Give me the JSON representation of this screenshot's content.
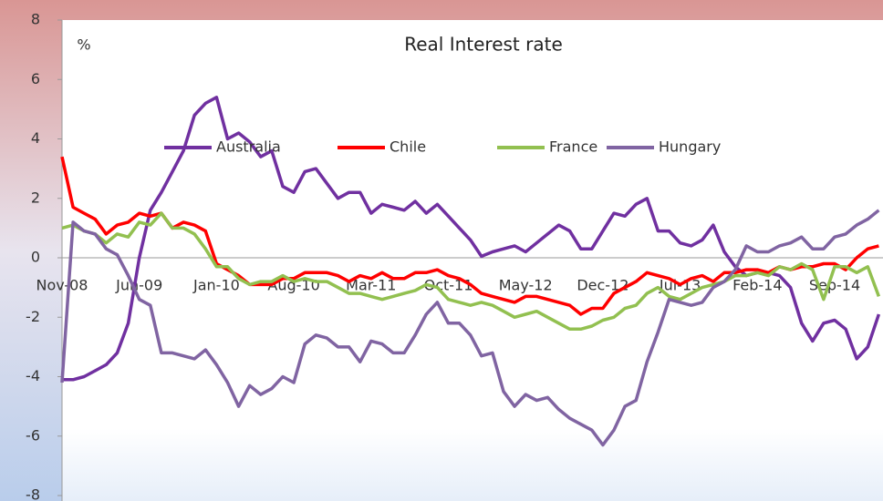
{
  "chart_data": {
    "type": "line",
    "title": "Real Interest rate",
    "y_label": "%",
    "categories": [
      "Nov-08",
      null,
      null,
      null,
      null,
      null,
      null,
      "Jun-09",
      null,
      null,
      null,
      null,
      null,
      null,
      "Jan-10",
      null,
      null,
      null,
      null,
      null,
      null,
      "Aug-10",
      null,
      null,
      null,
      null,
      null,
      null,
      "Mar-11",
      null,
      null,
      null,
      null,
      null,
      null,
      "Oct-11",
      null,
      null,
      null,
      null,
      null,
      null,
      "May-12",
      null,
      null,
      null,
      null,
      null,
      null,
      "Dec-12",
      null,
      null,
      null,
      null,
      null,
      null,
      "Jul-13",
      null,
      null,
      null,
      null,
      null,
      null,
      "Feb-14",
      null,
      null,
      null,
      null,
      null,
      null,
      "Sep-14",
      null,
      null,
      null,
      null
    ],
    "series": [
      {
        "name": "Australia",
        "color": "#7030a0",
        "values": [
          -4.1,
          -4.1,
          -4.0,
          -3.8,
          -3.6,
          -3.2,
          -2.2,
          0.0,
          1.6,
          2.2,
          2.9,
          3.6,
          4.8,
          5.2,
          5.4,
          4.0,
          4.2,
          3.9,
          3.4,
          3.6,
          2.4,
          2.2,
          2.9,
          3.0,
          2.5,
          2.0,
          2.2,
          2.2,
          1.5,
          1.8,
          1.7,
          1.6,
          1.9,
          1.5,
          1.8,
          1.4,
          1.0,
          0.6,
          0.05,
          0.2,
          0.3,
          0.4,
          0.2,
          0.5,
          0.8,
          1.1,
          0.9,
          0.3,
          0.3,
          0.9,
          1.5,
          1.4,
          1.8,
          2.0,
          0.9,
          0.9,
          0.5,
          0.4,
          0.6,
          1.1,
          0.2,
          -0.3,
          -0.6,
          -0.5,
          -0.5,
          -0.6,
          -1.0,
          -2.2,
          -2.8,
          -2.2,
          -2.1,
          -2.4,
          -3.4,
          -3.0,
          -1.9
        ]
      },
      {
        "name": "Chile",
        "color": "#ff0000",
        "values": [
          3.4,
          1.7,
          1.5,
          1.3,
          0.8,
          1.1,
          1.2,
          1.5,
          1.4,
          1.5,
          1.0,
          1.2,
          1.1,
          0.9,
          -0.2,
          -0.4,
          -0.6,
          -0.9,
          -0.9,
          -0.9,
          -0.7,
          -0.7,
          -0.5,
          -0.5,
          -0.5,
          -0.6,
          -0.8,
          -0.6,
          -0.7,
          -0.5,
          -0.7,
          -0.7,
          -0.5,
          -0.5,
          -0.4,
          -0.6,
          -0.7,
          -0.9,
          -1.2,
          -1.3,
          -1.4,
          -1.5,
          -1.3,
          -1.3,
          -1.4,
          -1.5,
          -1.6,
          -1.9,
          -1.7,
          -1.7,
          -1.2,
          -1.0,
          -0.8,
          -0.5,
          -0.6,
          -0.7,
          -0.9,
          -0.7,
          -0.6,
          -0.8,
          -0.5,
          -0.5,
          -0.4,
          -0.4,
          -0.5,
          -0.3,
          -0.4,
          -0.3,
          -0.3,
          -0.2,
          -0.2,
          -0.4,
          0.0,
          0.3,
          0.4
        ]
      },
      {
        "name": "France",
        "color": "#92c050",
        "values": [
          1.0,
          1.1,
          0.9,
          0.8,
          0.5,
          0.8,
          0.7,
          1.2,
          1.1,
          1.5,
          1.0,
          1.0,
          0.8,
          0.3,
          -0.3,
          -0.3,
          -0.7,
          -0.9,
          -0.8,
          -0.8,
          -0.6,
          -0.8,
          -0.7,
          -0.8,
          -0.8,
          -1.0,
          -1.2,
          -1.2,
          -1.3,
          -1.4,
          -1.3,
          -1.2,
          -1.1,
          -0.9,
          -1.0,
          -1.4,
          -1.5,
          -1.6,
          -1.5,
          -1.6,
          -1.8,
          -2.0,
          -1.9,
          -1.8,
          -2.0,
          -2.2,
          -2.4,
          -2.4,
          -2.3,
          -2.1,
          -2.0,
          -1.7,
          -1.6,
          -1.2,
          -1.0,
          -1.3,
          -1.4,
          -1.2,
          -1.0,
          -0.9,
          -0.8,
          -0.6,
          -0.6,
          -0.5,
          -0.6,
          -0.3,
          -0.4,
          -0.2,
          -0.4,
          -1.4,
          -0.3,
          -0.3,
          -0.5,
          -0.3,
          -1.3
        ]
      },
      {
        "name": "Hungary",
        "color": "#8064a2",
        "values": [
          -4.2,
          1.2,
          0.9,
          0.8,
          0.3,
          0.1,
          -0.6,
          -1.4,
          -1.6,
          -3.2,
          -3.2,
          -3.3,
          -3.4,
          -3.1,
          -3.6,
          -4.2,
          -5.0,
          -4.3,
          -4.6,
          -4.4,
          -4.0,
          -4.2,
          -2.9,
          -2.6,
          -2.7,
          -3.0,
          -3.0,
          -3.5,
          -2.8,
          -2.9,
          -3.2,
          -3.2,
          -2.6,
          -1.9,
          -1.5,
          -2.2,
          -2.2,
          -2.6,
          -3.3,
          -3.2,
          -4.5,
          -5.0,
          -4.6,
          -4.8,
          -4.7,
          -5.1,
          -5.4,
          -5.6,
          -5.8,
          -6.3,
          -5.8,
          -5.0,
          -4.8,
          -3.5,
          -2.5,
          -1.4,
          -1.5,
          -1.6,
          -1.5,
          -1.0,
          -0.8,
          -0.4,
          0.4,
          0.2,
          0.2,
          0.4,
          0.5,
          0.7,
          0.3,
          0.3,
          0.7,
          0.8,
          1.1,
          1.3,
          1.6
        ]
      }
    ],
    "ylim": [
      -8,
      8
    ],
    "yticks": [
      -8,
      -6,
      -4,
      -2,
      0,
      2,
      4,
      6,
      8
    ]
  }
}
